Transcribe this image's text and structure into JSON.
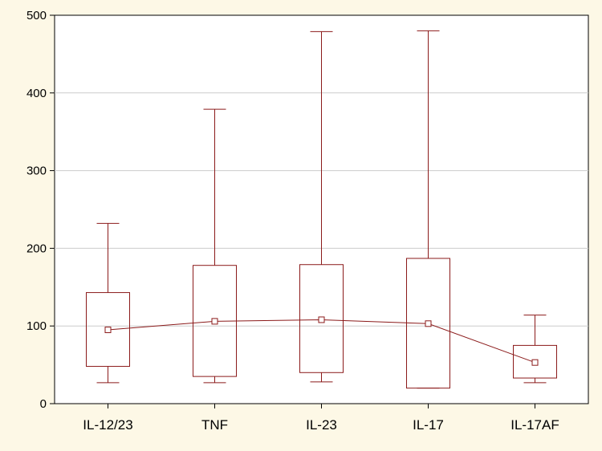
{
  "chart_data": {
    "type": "box",
    "categories": [
      "IL-12/23",
      "TNF",
      "IL-23",
      "IL-17",
      "IL-17AF"
    ],
    "boxes": [
      {
        "min": 27,
        "q1": 48,
        "median": 95,
        "q3": 143,
        "max": 232
      },
      {
        "min": 27,
        "q1": 35,
        "median": 106,
        "q3": 178,
        "max": 379
      },
      {
        "min": 28,
        "q1": 40,
        "median": 108,
        "q3": 179,
        "max": 479
      },
      {
        "min": 20,
        "q1": 20,
        "median": 103,
        "q3": 187,
        "max": 480
      },
      {
        "min": 27,
        "q1": 33,
        "median": 53,
        "q3": 75,
        "max": 114
      }
    ],
    "median_line": true,
    "ylim": [
      0,
      500
    ],
    "yticks": [
      0,
      100,
      200,
      300,
      400,
      500
    ],
    "grid": true,
    "colors": {
      "series": "#8b1a1a",
      "background": "#fdf8e6",
      "grid": "#cccccc"
    }
  }
}
